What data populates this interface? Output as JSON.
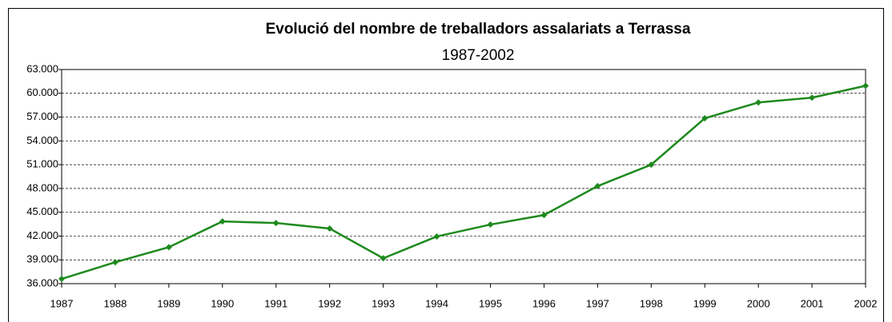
{
  "chart_data": {
    "type": "line",
    "title": "Evolució del nombre de treballadors assalariats a Terrassa",
    "subtitle": "1987-2002",
    "categories": [
      "1987",
      "1988",
      "1989",
      "1990",
      "1991",
      "1992",
      "1993",
      "1994",
      "1995",
      "1996",
      "1997",
      "1998",
      "1999",
      "2000",
      "2001",
      "2002"
    ],
    "series": [
      {
        "name": "Treballadors assalariats",
        "color": "#1e8a1e",
        "values": [
          36600,
          38700,
          40600,
          43850,
          43650,
          42950,
          39200,
          41950,
          43450,
          44650,
          48300,
          51000,
          56850,
          58850,
          59450,
          60950
        ]
      }
    ],
    "ylim": [
      36000,
      63000
    ],
    "yticks": [
      {
        "value": 36000,
        "label": "36.000"
      },
      {
        "value": 39000,
        "label": "39.000"
      },
      {
        "value": 42000,
        "label": "42.000"
      },
      {
        "value": 45000,
        "label": "45.000"
      },
      {
        "value": 48000,
        "label": "48.000"
      },
      {
        "value": 51000,
        "label": "51.000"
      },
      {
        "value": 54000,
        "label": "54.000"
      },
      {
        "value": 57000,
        "label": "57.000"
      },
      {
        "value": 60000,
        "label": "60.000"
      },
      {
        "value": 63000,
        "label": "63.000"
      }
    ],
    "grid": true
  }
}
